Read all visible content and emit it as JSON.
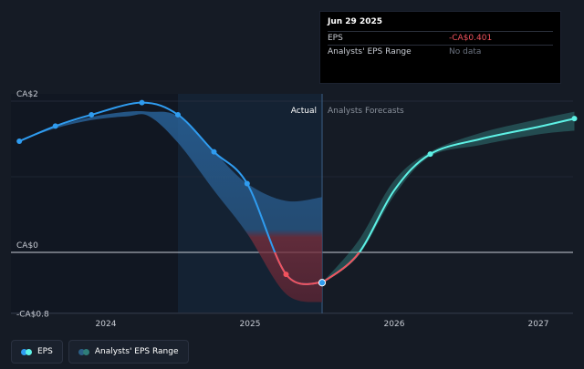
{
  "tooltip": {
    "date": "Jun 29 2025",
    "rows": [
      {
        "label": "EPS",
        "value": "-CA$0.401"
      },
      {
        "label": "Analysts' EPS Range",
        "value": "No data"
      }
    ]
  },
  "legend": [
    {
      "label": "EPS"
    },
    {
      "label": "Analysts' EPS Range"
    }
  ],
  "colors": {
    "background": "#151b25",
    "eps_actual": "#2f9cf0",
    "eps_forecast": "#5ef2e6",
    "eps_negative": "#f1525d",
    "range_fill": "#3fa7a0"
  },
  "chart_data": {
    "type": "line",
    "region_labels": {
      "actual": "Actual",
      "forecast": "Analysts Forecasts"
    },
    "y_ticks": [
      {
        "value": 2,
        "label": "CA$2"
      },
      {
        "value": 0,
        "label": "CA$0"
      },
      {
        "value": -0.8,
        "label": "-CA$0.8"
      }
    ],
    "x_ticks": [
      {
        "value": 2024.0,
        "label": "2024"
      },
      {
        "value": 2025.0,
        "label": "2025"
      },
      {
        "value": 2026.0,
        "label": "2026"
      },
      {
        "value": 2027.0,
        "label": "2027"
      }
    ],
    "divider_x": 2025.5,
    "ylim": [
      -0.8,
      2
    ],
    "series": [
      {
        "role": "actual",
        "points": [
          {
            "x": 2023.4,
            "y": 1.47
          },
          {
            "x": 2023.65,
            "y": 1.67
          },
          {
            "x": 2023.9,
            "y": 1.82
          },
          {
            "x": 2024.25,
            "y": 1.98
          },
          {
            "x": 2024.5,
            "y": 1.82
          },
          {
            "x": 2024.75,
            "y": 1.33
          },
          {
            "x": 2024.98,
            "y": 0.91
          },
          {
            "x": 2025.25,
            "y": -0.29
          },
          {
            "x": 2025.5,
            "y": -0.401
          }
        ]
      },
      {
        "role": "forecast",
        "points": [
          {
            "x": 2025.5,
            "y": -0.401
          },
          {
            "x": 2025.75,
            "y": -0.02
          },
          {
            "x": 2026.0,
            "y": 0.82
          },
          {
            "x": 2026.25,
            "y": 1.3
          },
          {
            "x": 2026.6,
            "y": 1.5
          },
          {
            "x": 2027.0,
            "y": 1.66
          },
          {
            "x": 2027.25,
            "y": 1.77
          }
        ]
      }
    ],
    "range_actual": [
      {
        "x": 2023.4,
        "low": 1.47,
        "high": 1.47
      },
      {
        "x": 2023.65,
        "low": 1.64,
        "high": 1.66
      },
      {
        "x": 2023.9,
        "low": 1.75,
        "high": 1.79
      },
      {
        "x": 2024.15,
        "low": 1.8,
        "high": 1.86
      },
      {
        "x": 2024.3,
        "low": 1.8,
        "high": 1.86
      },
      {
        "x": 2024.5,
        "low": 1.45,
        "high": 1.8
      },
      {
        "x": 2024.75,
        "low": 0.82,
        "high": 1.33
      },
      {
        "x": 2024.98,
        "low": 0.25,
        "high": 0.91
      },
      {
        "x": 2025.25,
        "low": -0.55,
        "high": 0.68
      },
      {
        "x": 2025.5,
        "low": -0.66,
        "high": 0.73
      }
    ],
    "range_forecast": [
      {
        "x": 2025.5,
        "low": -0.401,
        "high": -0.401
      },
      {
        "x": 2025.75,
        "low": -0.05,
        "high": 0.15
      },
      {
        "x": 2026.0,
        "low": 0.75,
        "high": 0.95
      },
      {
        "x": 2026.25,
        "low": 1.27,
        "high": 1.33
      },
      {
        "x": 2026.6,
        "low": 1.42,
        "high": 1.58
      },
      {
        "x": 2027.0,
        "low": 1.56,
        "high": 1.76
      },
      {
        "x": 2027.25,
        "low": 1.61,
        "high": 1.86
      }
    ],
    "grid": true
  }
}
